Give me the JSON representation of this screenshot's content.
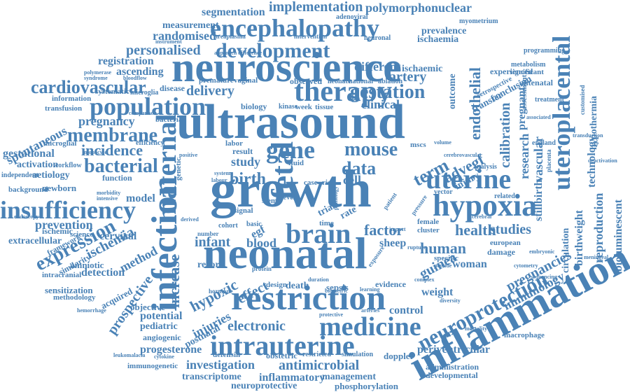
{
  "color": "#4a82b6",
  "words": {
    "growth": "growth",
    "ultrasound": "ultrasound",
    "neuroscience": "neuroscience",
    "neonatal": "neonatal",
    "inflammation": "inflammation",
    "restriction": "restriction",
    "infection": "infection",
    "intrauterine": "intrauterine",
    "encephalopathy": "encephalopathy",
    "therapy": "therapy",
    "brain": "brain",
    "fetal": "fetal",
    "maternal": "maternal",
    "hypoxia": "hypoxia",
    "uterine": "uterine",
    "uteroplacental": "uteroplacental",
    "insufficiency": "insufficiency",
    "population": "population",
    "development": "development",
    "neuroprotection": "neuroprotection",
    "medicine": "medicine",
    "cardiovascular": "cardiovascular",
    "mouse": "mouse",
    "gene": "gene",
    "gestation": "gestation",
    "membrane": "membrane",
    "bacterial": "bacterial",
    "incidence": "incidence",
    "expression": "expression",
    "implementation": "implementation",
    "polymorphonuclear": "polymorphonuclear",
    "segmentation": "segmentation",
    "measurement": "measurement",
    "randomised": "randomised",
    "personalised": "personalised",
    "registration": "registration",
    "ascending": "ascending",
    "prevalence": "prevalence",
    "ischaemia": "ischaemia",
    "ischaemic": "ischaemic",
    "different": "different",
    "artery": "artery",
    "clinical": "clinical",
    "delivery": "delivery",
    "pregnancy": "pregnancy",
    "spontaneous": "spontaneous",
    "gestational": "gestational",
    "activation": "activation",
    "aetiology": "aetiology",
    "newborn": "newborn",
    "background": "background",
    "prevention": "prevention",
    "cervical": "cervical",
    "ischemia": "ischemia",
    "method": "method",
    "detection": "detection",
    "prospective": "prospective",
    "increase": "increase",
    "hypoxic": "hypoxic",
    "effect": "effect",
    "infant": "infant",
    "blood": "blood",
    "birth": "birth",
    "study": "study",
    "data": "data",
    "factor": "factor",
    "human": "human",
    "health": "health",
    "guinea": "guinea",
    "sheep": "sheep",
    "cell": "cell",
    "term": "term",
    "advegf": "advegf",
    "endothelial": "endothelial",
    "calibration": "calibration",
    "research": "research",
    "vascular": "vascular",
    "studies": "studies",
    "stillbirth": "stillbirth",
    "technology": "technology",
    "hypothermia": "hypothermia",
    "reproduction": "reproduction",
    "bioluminescent": "bioluminescent",
    "birthweight": "birthweight",
    "circulation": "circulation",
    "pregnancies": "pregnancies",
    "immunology": "immunology",
    "woman": "woman",
    "weight": "weight",
    "electronic": "electronic",
    "control": "control",
    "potential": "potential",
    "pediatric": "pediatric",
    "injuries": "injuries",
    "postnatal": "postnatal",
    "progesterone": "progesterone",
    "investigation": "investigation",
    "antimicrobial": "antimicrobial",
    "transcriptome": "transcriptome",
    "inflammatory": "inflammatory",
    "management": "management",
    "neuroprotective": "neuroprotective",
    "phosphorylation": "phosphorylation",
    "periventricular": "periventricular",
    "administration": "administration",
    "developmental": "developmental",
    "immunogenetic": "immunogenetic",
    "angiogenic": "angiogenic",
    "objective": "objective",
    "acquired": "acquired",
    "sensitization": "sensitization",
    "methodology": "methodology",
    "intracranial": "intracranial",
    "amniotic": "amniotic",
    "similarity": "similarity",
    "extracellular": "extracellular",
    "ischemic": "ischemic",
    "framework": "framework",
    "science": "science",
    "model": "model",
    "function": "function",
    "microglial": "microglial",
    "efficiency": "efficiency",
    "independent": "independent",
    "workflow": "workflow",
    "record": "record",
    "death": "death",
    "sepsis": "sepsis",
    "design": "design",
    "obstetric": "obstetric",
    "evidence": "evidence",
    "doppler": "doppler",
    "defensin": "defensin",
    "restricted": "restricted",
    "simulation": "simulation",
    "european": "european",
    "specific": "specific",
    "damage": "damage",
    "macrophage": "macrophage",
    "experienced": "experienced",
    "significant": "significant",
    "antenatal": "antenatal",
    "assessment": "assessment",
    "treatment": "treatment",
    "metabolism": "metabolism",
    "programming": "programming",
    "conclusion": "conclusion",
    "retrospective": "retrospective",
    "myometrium": "myometrium",
    "adenoviral": "adenoviral",
    "neuronal": "neuronal",
    "intervention": "intervention",
    "ureaplasma": "ureaplasma",
    "disease": "disease",
    "systematic": "systematic",
    "microglia": "microglia",
    "information": "information",
    "transfusion": "transfusion",
    "bacteria": "bacteria",
    "premature": "premature",
    "vaginal": "vaginal",
    "observed": "observed",
    "neonate": "neonate",
    "national": "national",
    "ablation": "ablation",
    "outcome": "outcome",
    "transfer": "transfer",
    "biology": "biology",
    "kinase": "kinase",
    "week": "week",
    "tissue": "tissue",
    "result": "result",
    "labor": "labor",
    "level": "level",
    "case": "case",
    "risk": "risk",
    "fluid": "fluid",
    "mscs": "mscs",
    "vector": "vector",
    "related": "related",
    "female": "female",
    "cluster": "cluster",
    "stem": "stem",
    "signal": "signal",
    "cohort": "cohort",
    "basic": "basic",
    "time": "time",
    "trial": "trial",
    "rate": "rate",
    "egf": "egf",
    "protein": "protein",
    "hormone": "hormone",
    "protective": "protective",
    "biometric": "biometric",
    "duration": "duration",
    "arteries": "arteries",
    "complex": "complex",
    "pathology": "pathology",
    "syndrome": "syndrome",
    "bloodflow": "bloodflow",
    "polymerase": "polymerase",
    "comparison": "comparison",
    "morbidity": "morbidity",
    "intensive": "intensive",
    "endoscopy": "endoscopy",
    "monocyte": "monocyte",
    "hemorrhage": "hemorrhage",
    "cytokine": "cytokine",
    "leukomalacia": "leukomalacia",
    "number": "number",
    "genetic": "genetic",
    "labour": "labour",
    "system": "system",
    "positive": "positive",
    "derived": "derived",
    "approach": "approach",
    "difference": "difference",
    "instrument": "instrument",
    "england": "england",
    "associated": "associated",
    "transduction": "transduction",
    "deactivation": "deactivation",
    "meningeal": "meningeal",
    "embryonic": "embryonic",
    "sequencing": "sequencing",
    "cytometry": "cytometry",
    "cerebral": "cerebral",
    "rupture": "rupture",
    "peptide": "peptide",
    "mortality": "mortality",
    "diversity": "diversity",
    "learning": "learning",
    "exposure": "exposure",
    "patient": "patient",
    "impact": "impact",
    "pressure": "pressure",
    "volume": "volume",
    "placenta": "placenta",
    "cerebrovascular": "cerebrovascular",
    "customised": "customised",
    "analysis": "analysis",
    "injury": "injury",
    "pregnant": "pregnant"
  }
}
